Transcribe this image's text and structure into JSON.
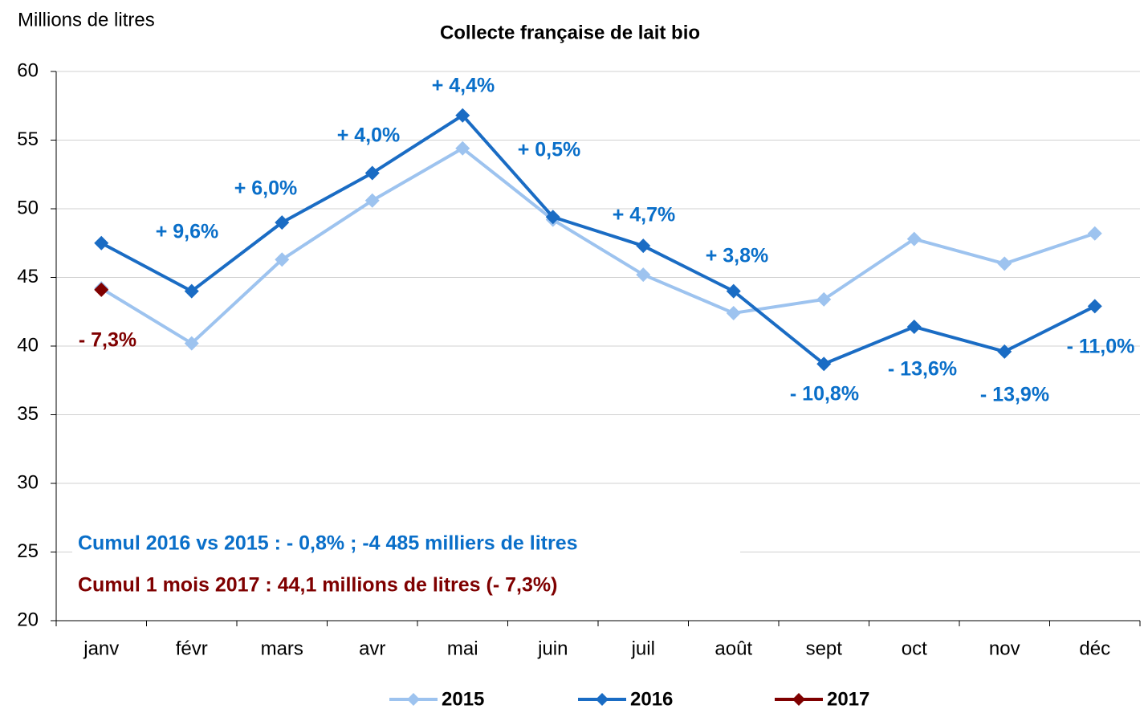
{
  "chart_data": {
    "type": "line",
    "title": "Collecte française de lait bio",
    "y_label": "Millions de litres",
    "categories": [
      "janv",
      "févr",
      "mars",
      "avr",
      "mai",
      "juin",
      "juil",
      "août",
      "sept",
      "oct",
      "nov",
      "déc"
    ],
    "series": [
      {
        "name": "2015",
        "color": "#9dc3ef",
        "values": [
          44.2,
          40.2,
          46.3,
          50.6,
          54.4,
          49.2,
          45.2,
          42.4,
          43.4,
          47.8,
          46.0,
          48.2
        ]
      },
      {
        "name": "2016",
        "color": "#1a6cc4",
        "values": [
          47.5,
          44.0,
          49.0,
          52.6,
          56.8,
          49.4,
          47.3,
          44.0,
          38.7,
          41.4,
          39.6,
          42.9
        ]
      },
      {
        "name": "2017",
        "color": "#7f0000",
        "values": [
          44.1,
          null,
          null,
          null,
          null,
          null,
          null,
          null,
          null,
          null,
          null,
          null
        ]
      }
    ],
    "ylim": [
      20,
      60
    ],
    "yticks": [
      20,
      25,
      30,
      35,
      40,
      45,
      50,
      55,
      60
    ],
    "grid": true,
    "legend": "bottom",
    "annotations": [
      {
        "text": "+ 9,6%",
        "color": "#0a6fc9"
      },
      {
        "text": "+ 6,0%",
        "color": "#0a6fc9"
      },
      {
        "text": "+ 4,0%",
        "color": "#0a6fc9"
      },
      {
        "text": "+ 4,4%",
        "color": "#0a6fc9"
      },
      {
        "text": "+ 0,5%",
        "color": "#0a6fc9"
      },
      {
        "text": "+ 4,7%",
        "color": "#0a6fc9"
      },
      {
        "text": "+ 3,8%",
        "color": "#0a6fc9"
      },
      {
        "text": "- 10,8%",
        "color": "#0a6fc9"
      },
      {
        "text": "- 13,6%",
        "color": "#0a6fc9"
      },
      {
        "text": "- 13,9%",
        "color": "#0a6fc9"
      },
      {
        "text": "- 11,0%",
        "color": "#0a6fc9"
      },
      {
        "text": "- 7,3%",
        "color": "#7f0000"
      }
    ],
    "notes": [
      {
        "text": "Cumul 2016 vs 2015 :  - 0,8% ; -4 485 milliers de litres",
        "color": "#0a6fc9"
      },
      {
        "text": "Cumul 1 mois 2017 : 44,1 millions de litres (- 7,3%)",
        "color": "#7f0000"
      }
    ]
  }
}
